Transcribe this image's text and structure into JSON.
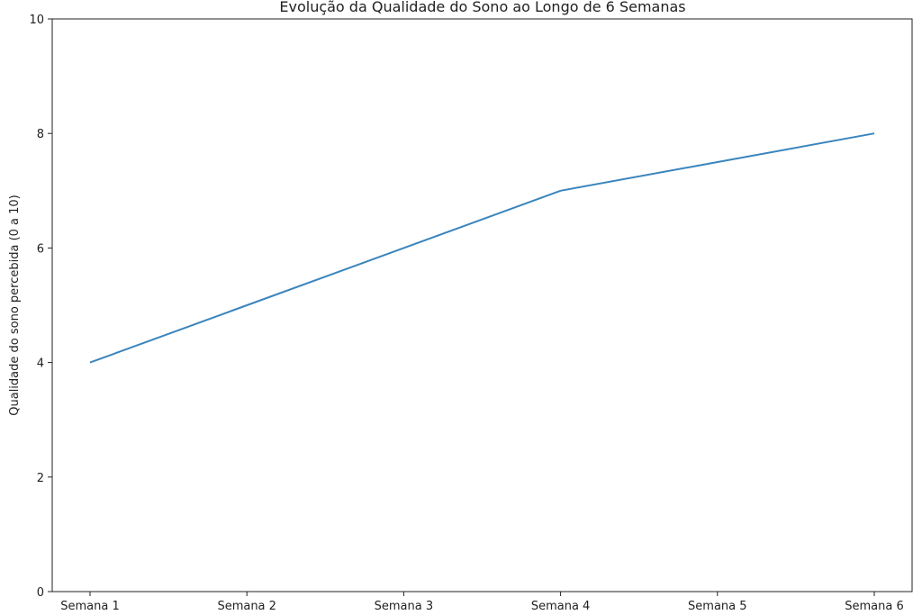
{
  "chart_data": {
    "type": "line",
    "title": "Evolução da Qualidade do Sono ao Longo de 6 Semanas",
    "xlabel": "",
    "ylabel": "Qualidade do sono percebida (0 a 10)",
    "categories": [
      "Semana 1",
      "Semana 2",
      "Semana 3",
      "Semana 4",
      "Semana 5",
      "Semana 6"
    ],
    "series": [
      {
        "values": [
          4,
          5,
          6,
          7,
          7.5,
          8
        ]
      }
    ],
    "ylim": [
      0,
      10
    ],
    "yticks": [
      0,
      2,
      4,
      6,
      8,
      10
    ],
    "grid": false,
    "colors": {
      "line": "#3a85bd",
      "axis": "#222222"
    }
  }
}
